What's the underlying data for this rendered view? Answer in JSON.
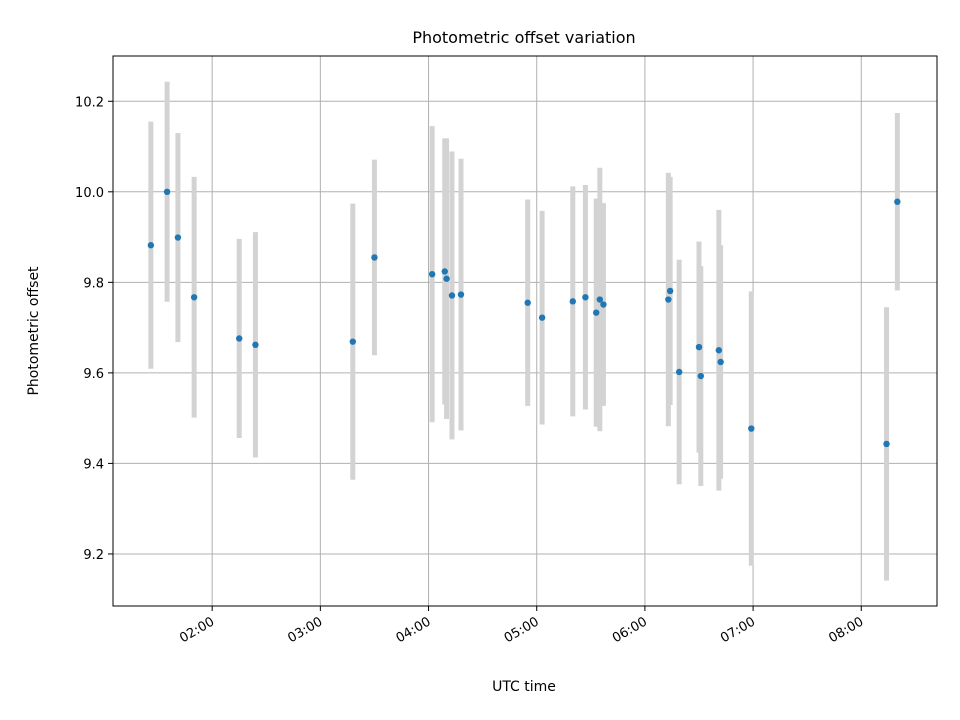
{
  "chart_data": {
    "type": "scatter",
    "title": "Photometric offset variation",
    "xlabel": "UTC time",
    "ylabel": "Photometric offset",
    "grid": true,
    "marker_color": "#1f77b4",
    "errorbar_color": "#d3d3d3",
    "x_ticks": [
      "02:00",
      "03:00",
      "04:00",
      "05:00",
      "06:00",
      "07:00",
      "08:00"
    ],
    "y_ticks": [
      "9.2",
      "9.4",
      "9.6",
      "9.8",
      "10.0",
      "10.2"
    ],
    "xlim": [
      "01:05",
      "08:42"
    ],
    "ylim": [
      9.085,
      10.3
    ],
    "points": [
      {
        "x": "01:26",
        "y": 9.882,
        "err": 0.273
      },
      {
        "x": "01:35",
        "y": 10.0,
        "err": 0.243
      },
      {
        "x": "01:41",
        "y": 9.899,
        "err": 0.231
      },
      {
        "x": "01:50",
        "y": 9.767,
        "err": 0.266
      },
      {
        "x": "02:15",
        "y": 9.676,
        "err": 0.22
      },
      {
        "x": "02:24",
        "y": 9.662,
        "err": 0.249
      },
      {
        "x": "03:18",
        "y": 9.669,
        "err": 0.305
      },
      {
        "x": "03:30",
        "y": 9.855,
        "err": 0.216
      },
      {
        "x": "04:02",
        "y": 9.818,
        "err": 0.327
      },
      {
        "x": "04:09",
        "y": 9.824,
        "err": 0.294
      },
      {
        "x": "04:10",
        "y": 9.808,
        "err": 0.31
      },
      {
        "x": "04:13",
        "y": 9.771,
        "err": 0.318
      },
      {
        "x": "04:18",
        "y": 9.773,
        "err": 0.3
      },
      {
        "x": "04:55",
        "y": 9.755,
        "err": 0.228
      },
      {
        "x": "05:03",
        "y": 9.722,
        "err": 0.236
      },
      {
        "x": "05:20",
        "y": 9.758,
        "err": 0.254
      },
      {
        "x": "05:27",
        "y": 9.767,
        "err": 0.248
      },
      {
        "x": "05:33",
        "y": 9.733,
        "err": 0.252
      },
      {
        "x": "05:35",
        "y": 9.762,
        "err": 0.291
      },
      {
        "x": "05:37",
        "y": 9.751,
        "err": 0.224
      },
      {
        "x": "06:13",
        "y": 9.762,
        "err": 0.28
      },
      {
        "x": "06:14",
        "y": 9.781,
        "err": 0.252
      },
      {
        "x": "06:19",
        "y": 9.602,
        "err": 0.248
      },
      {
        "x": "06:30",
        "y": 9.657,
        "err": 0.233
      },
      {
        "x": "06:31",
        "y": 9.593,
        "err": 0.243
      },
      {
        "x": "06:41",
        "y": 9.65,
        "err": 0.31
      },
      {
        "x": "06:42",
        "y": 9.624,
        "err": 0.258
      },
      {
        "x": "06:59",
        "y": 9.477,
        "err": 0.303
      },
      {
        "x": "08:14",
        "y": 9.443,
        "err": 0.302
      },
      {
        "x": "08:20",
        "y": 9.978,
        "err": 0.196
      }
    ]
  }
}
